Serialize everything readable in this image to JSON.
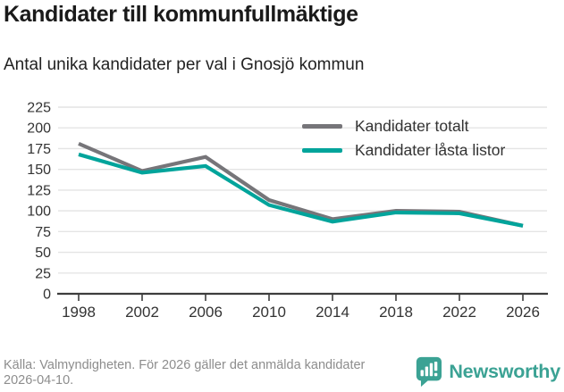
{
  "title": "Kandidater till kommunfullmäktige",
  "subtitle": "Antal unika kandidater per val i Gnosjö kommun",
  "chart_data": {
    "type": "line",
    "title": "Kandidater till kommunfullmäktige",
    "subtitle": "Antal unika kandidater per val i Gnosjö kommun",
    "x": [
      1998,
      2002,
      2006,
      2010,
      2014,
      2018,
      2022,
      2026
    ],
    "series": [
      {
        "name": "Kandidater totalt",
        "color": "#767579",
        "values": [
          181,
          148,
          165,
          113,
          90,
          100,
          99,
          82
        ]
      },
      {
        "name": "Kandidater låsta listor",
        "color": "#00a49b",
        "values": [
          168,
          146,
          154,
          107,
          87,
          98,
          97,
          82
        ]
      }
    ],
    "ylim": [
      0,
      225
    ],
    "ytick_step": 25,
    "grid": true,
    "legend_position": "top-right",
    "colors": {
      "grid_line": "#e4e4e4",
      "axis_line": "#3d3d3d",
      "tick_label": "#333333"
    }
  },
  "footer": {
    "source_text": "Källa: Valmyndigheten. För 2026 gäller det anmälda kandidater 2026-04-10."
  },
  "branding": {
    "logo_text": "Newsworthy",
    "logo_color": "#3ba294"
  }
}
